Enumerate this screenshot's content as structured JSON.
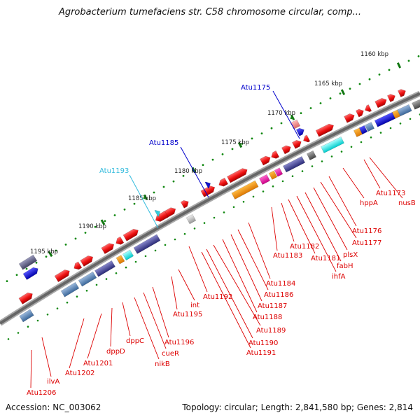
{
  "title": "Agrobacterium tumefaciens str. C58 chromosome circular, comp...",
  "accession": "Accession: NC_003062",
  "topology": "Topology: circular; Length: 2,841,580 bp; Genes: 2,814",
  "ruler": [
    "1160 kbp",
    "1165 kbp",
    "1170 kbp",
    "1175 kbp",
    "1180 kbp",
    "1185 kbp",
    "1190 kbp",
    "1195 kbp"
  ],
  "upper_labels": [
    {
      "text": "Atu1175",
      "color": "#0000cc"
    },
    {
      "text": "Atu1185",
      "color": "#0000cc"
    },
    {
      "text": "Atu1193",
      "color": "#33bbdd"
    }
  ],
  "gene_labels": [
    "Atu1173",
    "nusB",
    "hppA",
    "Atu1176",
    "Atu1177",
    "plsX",
    "fabH",
    "ihfA",
    "Atu1181",
    "Atu1182",
    "Atu1183",
    "Atu1184",
    "Atu1186",
    "Atu1187",
    "Atu1188",
    "Atu1189",
    "Atu1190",
    "Atu1191",
    "Atu1192",
    "int",
    "Atu1195",
    "Atu1196",
    "cueR",
    "nikB",
    "dppC",
    "dppD",
    "Atu1201",
    "Atu1202",
    "ilvA",
    "Atu1206"
  ],
  "colors": {
    "gene_red": "#ee1111",
    "label_red": "#dd0000",
    "backbone": "#777777",
    "tick_green": "#118811"
  }
}
